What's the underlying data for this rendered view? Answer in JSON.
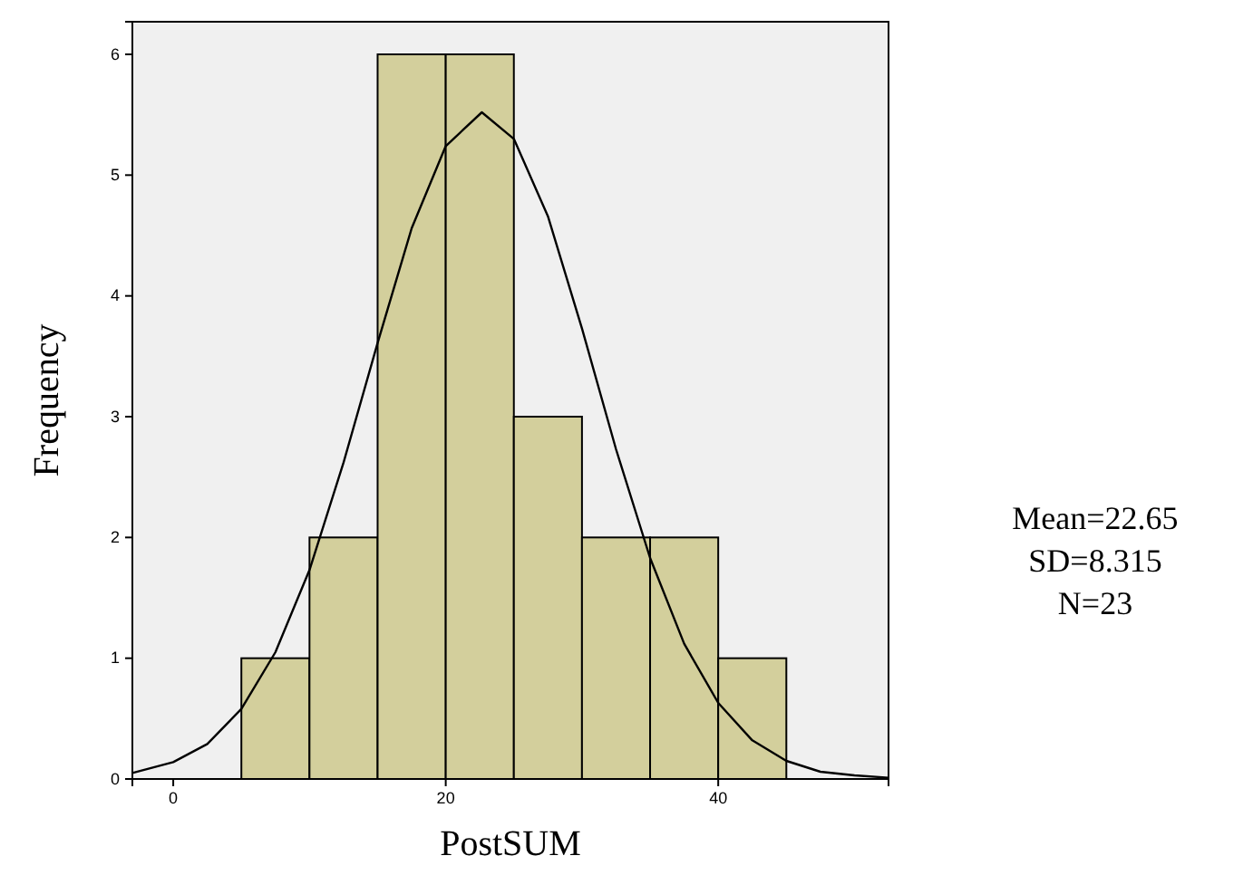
{
  "chart_data": {
    "type": "histogram",
    "xlabel": "PostSUM",
    "ylabel": "Frequency",
    "bins": [
      5,
      10,
      15,
      20,
      25,
      30,
      35,
      40,
      45
    ],
    "values": [
      1,
      2,
      6,
      6,
      3,
      2,
      2,
      1
    ],
    "color": "#d3cf9c",
    "xlim": [
      -3,
      52.5
    ],
    "xticks": [
      0,
      20,
      40
    ],
    "ylim": [
      0,
      6.27
    ],
    "yticks": [
      0,
      1,
      2,
      3,
      4,
      5,
      6
    ],
    "grid": false,
    "series": [
      {
        "type": "line",
        "color": "#000000",
        "x": [
          -3,
          0,
          2.5,
          5,
          7.5,
          10,
          12.5,
          15,
          17.5,
          20,
          22.65,
          25,
          27.5,
          30,
          32.5,
          35,
          37.5,
          40,
          42.5,
          45,
          47.5,
          50,
          52.5
        ],
        "values": [
          0.05,
          0.14,
          0.29,
          0.58,
          1.05,
          1.73,
          2.62,
          3.61,
          4.56,
          5.24,
          5.52,
          5.3,
          4.66,
          3.73,
          2.73,
          1.83,
          1.12,
          0.63,
          0.32,
          0.15,
          0.06,
          0.03,
          0.01
        ]
      }
    ],
    "marker": "none",
    "line_style": "solid",
    "annotations": [
      "Mean=22.65",
      "SD=8.315",
      "N=23"
    ]
  }
}
